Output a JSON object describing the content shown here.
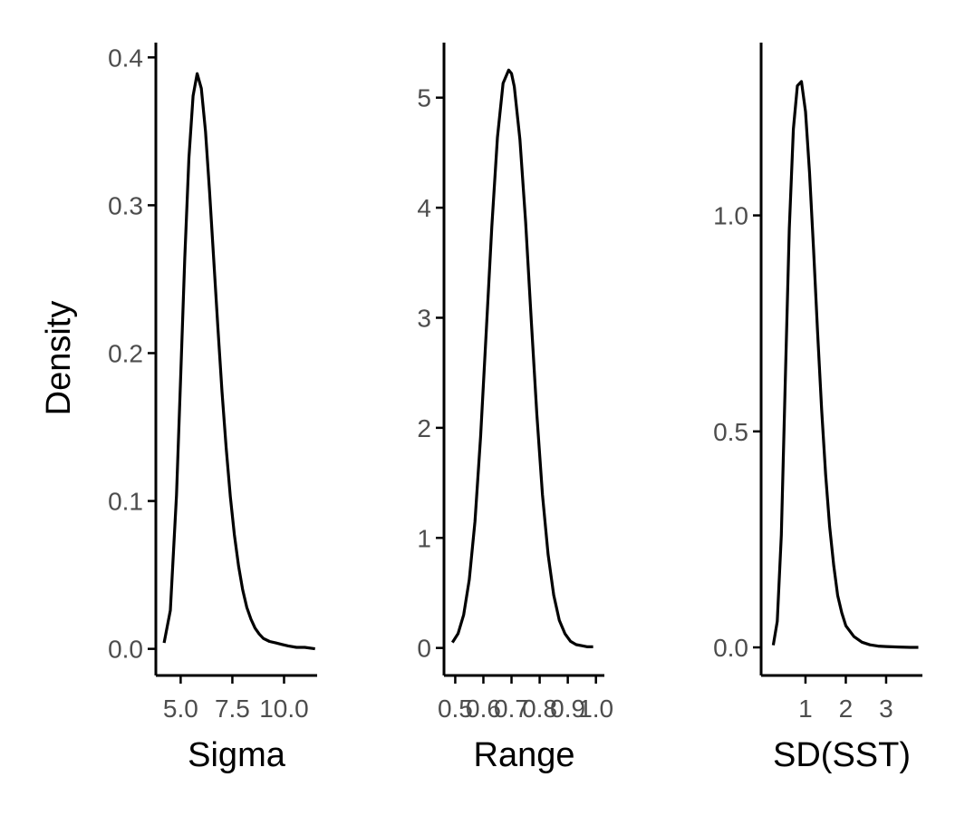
{
  "chart_data": [
    {
      "type": "line",
      "xlabel": "Sigma",
      "ylabel": "Density",
      "xlim": [
        3.8,
        11.6
      ],
      "ylim": [
        -0.018,
        0.41
      ],
      "xticks": [
        5.0,
        7.5,
        10.0
      ],
      "xtick_labels": [
        "5.0",
        "7.5",
        "10.0"
      ],
      "yticks": [
        0.0,
        0.1,
        0.2,
        0.3,
        0.4
      ],
      "ytick_labels": [
        "0.0",
        "0.1",
        "0.2",
        "0.3",
        "0.4"
      ],
      "x": [
        4.2,
        4.5,
        4.8,
        5.0,
        5.2,
        5.4,
        5.6,
        5.8,
        6.0,
        6.2,
        6.4,
        6.6,
        6.8,
        7.0,
        7.2,
        7.4,
        7.6,
        7.8,
        8.0,
        8.2,
        8.4,
        8.6,
        8.8,
        9.0,
        9.3,
        9.6,
        9.9,
        10.2,
        10.6,
        11.0,
        11.5
      ],
      "y": [
        0.004,
        0.026,
        0.104,
        0.184,
        0.264,
        0.332,
        0.374,
        0.389,
        0.379,
        0.35,
        0.309,
        0.263,
        0.217,
        0.174,
        0.136,
        0.103,
        0.077,
        0.056,
        0.04,
        0.028,
        0.02,
        0.014,
        0.01,
        0.007,
        0.005,
        0.004,
        0.003,
        0.002,
        0.001,
        0.001,
        0.0
      ]
    },
    {
      "type": "line",
      "xlabel": "Range",
      "ylabel": "",
      "xlim": [
        0.46,
        1.03
      ],
      "ylim": [
        -0.25,
        5.5
      ],
      "xticks": [
        0.5,
        0.6,
        0.7,
        0.8,
        0.9,
        1.0
      ],
      "xtick_labels": [
        "0.5",
        "0.6",
        "0.7",
        "0.8",
        "0.9",
        "1.0"
      ],
      "yticks": [
        0,
        1,
        2,
        3,
        4,
        5
      ],
      "ytick_labels": [
        "0",
        "1",
        "2",
        "3",
        "4",
        "5"
      ],
      "x": [
        0.49,
        0.51,
        0.53,
        0.55,
        0.57,
        0.59,
        0.61,
        0.63,
        0.65,
        0.67,
        0.69,
        0.7,
        0.71,
        0.73,
        0.75,
        0.77,
        0.79,
        0.81,
        0.83,
        0.85,
        0.87,
        0.89,
        0.91,
        0.93,
        0.95,
        0.97,
        0.99
      ],
      "y": [
        0.05,
        0.13,
        0.3,
        0.62,
        1.15,
        1.92,
        2.87,
        3.83,
        4.64,
        5.13,
        5.25,
        5.22,
        5.1,
        4.62,
        3.87,
        2.98,
        2.12,
        1.39,
        0.85,
        0.48,
        0.25,
        0.13,
        0.06,
        0.03,
        0.02,
        0.01,
        0.01
      ]
    },
    {
      "type": "line",
      "xlabel": "SD(SST)",
      "ylabel": "",
      "xlim": [
        -0.1,
        3.9
      ],
      "ylim": [
        -0.065,
        1.4
      ],
      "xticks": [
        1,
        2,
        3
      ],
      "xtick_labels": [
        "1",
        "2",
        "3"
      ],
      "yticks": [
        0.0,
        0.5,
        1.0
      ],
      "ytick_labels": [
        "0.0",
        "0.5",
        "1.0"
      ],
      "x": [
        0.2,
        0.3,
        0.4,
        0.5,
        0.6,
        0.7,
        0.8,
        0.9,
        1.0,
        1.1,
        1.2,
        1.3,
        1.4,
        1.5,
        1.6,
        1.7,
        1.8,
        1.9,
        2.0,
        2.2,
        2.4,
        2.6,
        2.8,
        3.0,
        3.3,
        3.6,
        3.8
      ],
      "y": [
        0.005,
        0.06,
        0.26,
        0.62,
        0.97,
        1.2,
        1.3,
        1.31,
        1.24,
        1.1,
        0.92,
        0.73,
        0.55,
        0.4,
        0.28,
        0.19,
        0.12,
        0.08,
        0.05,
        0.025,
        0.012,
        0.006,
        0.003,
        0.002,
        0.001,
        0.0,
        0.0
      ]
    }
  ]
}
